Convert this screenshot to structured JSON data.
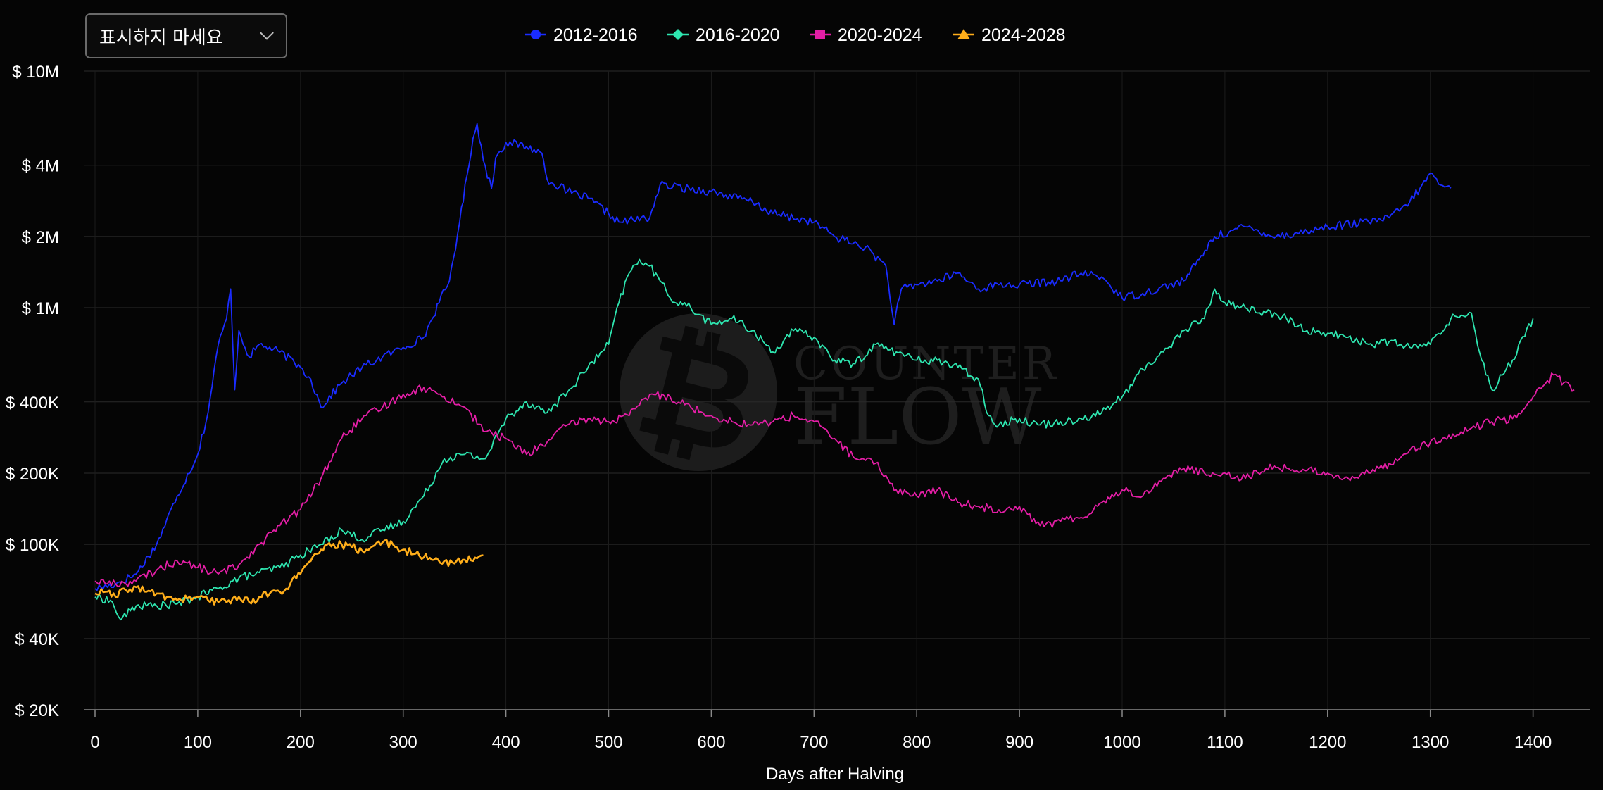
{
  "dropdown": {
    "label": "표시하지 마세요"
  },
  "watermark": {
    "line1": "COUNTER",
    "line2": "FLOW"
  },
  "chart_data": {
    "type": "line",
    "xlabel": "Days after Halving",
    "xlim": [
      0,
      1440
    ],
    "xticks": [
      0,
      100,
      200,
      300,
      400,
      500,
      600,
      700,
      800,
      900,
      1000,
      1100,
      1200,
      1300,
      1400
    ],
    "y_scale": "log",
    "ylim": [
      20000,
      10000000
    ],
    "yticks": [
      {
        "value": 20000,
        "label": "$ 20K"
      },
      {
        "value": 40000,
        "label": "$ 40K"
      },
      {
        "value": 100000,
        "label": "$ 100K"
      },
      {
        "value": 200000,
        "label": "$ 200K"
      },
      {
        "value": 400000,
        "label": "$ 400K"
      },
      {
        "value": 1000000,
        "label": "$ 1M"
      },
      {
        "value": 2000000,
        "label": "$ 2M"
      },
      {
        "value": 4000000,
        "label": "$ 4M"
      },
      {
        "value": 10000000,
        "label": "$ 10M"
      }
    ],
    "grid": true,
    "legend_position": "top",
    "series": [
      {
        "name": "2012-2016",
        "color": "#1a2cff",
        "marker": "circle",
        "x": [
          0,
          20,
          40,
          60,
          80,
          100,
          110,
          120,
          128,
          132,
          136,
          140,
          150,
          160,
          180,
          200,
          210,
          220,
          240,
          260,
          280,
          300,
          320,
          335,
          345,
          355,
          362,
          368,
          372,
          378,
          386,
          390,
          400,
          420,
          435,
          440,
          460,
          480,
          500,
          510,
          540,
          550,
          600,
          640,
          660,
          700,
          720,
          750,
          770,
          778,
          785,
          800,
          820,
          840,
          860,
          880,
          900,
          940,
          960,
          980,
          1000,
          1020,
          1060,
          1075,
          1090,
          1120,
          1150,
          1180,
          1200,
          1240,
          1260,
          1280,
          1290,
          1300,
          1310,
          1320
        ],
        "values": [
          65000,
          68000,
          75000,
          100000,
          160000,
          240000,
          360000,
          700000,
          900000,
          1200000,
          450000,
          800000,
          620000,
          700000,
          650000,
          560000,
          500000,
          380000,
          480000,
          560000,
          620000,
          680000,
          750000,
          1050000,
          1300000,
          2300000,
          3600000,
          5200000,
          6000000,
          4200000,
          3200000,
          4300000,
          5000000,
          4800000,
          4500000,
          3500000,
          3100000,
          2900000,
          2500000,
          2300000,
          2400000,
          3300000,
          3100000,
          2800000,
          2500000,
          2300000,
          2000000,
          1800000,
          1500000,
          850000,
          1200000,
          1250000,
          1300000,
          1400000,
          1200000,
          1250000,
          1250000,
          1300000,
          1400000,
          1350000,
          1100000,
          1150000,
          1300000,
          1600000,
          2000000,
          2200000,
          2000000,
          2100000,
          2200000,
          2300000,
          2400000,
          2800000,
          3200000,
          3700000,
          3300000,
          3200000
        ]
      },
      {
        "name": "2016-2020",
        "color": "#2ee6b0",
        "marker": "diamond",
        "x": [
          0,
          15,
          25,
          40,
          60,
          80,
          100,
          120,
          140,
          160,
          180,
          200,
          220,
          240,
          260,
          280,
          300,
          320,
          340,
          360,
          380,
          400,
          420,
          440,
          460,
          480,
          500,
          510,
          520,
          530,
          540,
          550,
          560,
          580,
          600,
          620,
          640,
          660,
          680,
          700,
          720,
          740,
          760,
          780,
          800,
          820,
          840,
          860,
          870,
          880,
          900,
          920,
          940,
          960,
          980,
          1000,
          1020,
          1040,
          1060,
          1080,
          1090,
          1100,
          1120,
          1140,
          1160,
          1180,
          1200,
          1220,
          1240,
          1260,
          1280,
          1300,
          1320,
          1340,
          1350,
          1360,
          1380,
          1400
        ],
        "values": [
          60000,
          58000,
          48000,
          55000,
          55000,
          56000,
          60000,
          65000,
          72000,
          76000,
          80000,
          90000,
          100000,
          115000,
          105000,
          115000,
          125000,
          160000,
          230000,
          240000,
          230000,
          340000,
          400000,
          360000,
          440000,
          560000,
          700000,
          1050000,
          1400000,
          1600000,
          1500000,
          1300000,
          1100000,
          1000000,
          850000,
          900000,
          800000,
          650000,
          800000,
          750000,
          600000,
          580000,
          700000,
          650000,
          600000,
          600000,
          560000,
          500000,
          350000,
          320000,
          340000,
          320000,
          330000,
          340000,
          360000,
          420000,
          550000,
          650000,
          800000,
          900000,
          1200000,
          1050000,
          1000000,
          950000,
          900000,
          800000,
          780000,
          750000,
          700000,
          720000,
          680000,
          700000,
          900000,
          950000,
          600000,
          450000,
          600000,
          900000
        ]
      },
      {
        "name": "2020-2024",
        "color": "#e41ea6",
        "marker": "square",
        "x": [
          0,
          20,
          40,
          60,
          80,
          100,
          120,
          140,
          160,
          180,
          200,
          220,
          240,
          260,
          280,
          300,
          320,
          340,
          360,
          380,
          400,
          420,
          440,
          460,
          480,
          500,
          520,
          540,
          560,
          580,
          600,
          620,
          640,
          660,
          680,
          700,
          720,
          740,
          760,
          780,
          800,
          820,
          840,
          860,
          880,
          900,
          920,
          940,
          960,
          980,
          1000,
          1020,
          1040,
          1060,
          1080,
          1100,
          1120,
          1140,
          1160,
          1180,
          1200,
          1220,
          1240,
          1260,
          1280,
          1300,
          1320,
          1340,
          1360,
          1380,
          1400,
          1420,
          1440
        ],
        "values": [
          70000,
          68000,
          70000,
          78000,
          85000,
          80000,
          75000,
          82000,
          100000,
          120000,
          140000,
          190000,
          280000,
          340000,
          380000,
          430000,
          460000,
          420000,
          380000,
          300000,
          280000,
          240000,
          270000,
          320000,
          340000,
          330000,
          350000,
          430000,
          420000,
          380000,
          350000,
          330000,
          320000,
          330000,
          350000,
          330000,
          280000,
          230000,
          220000,
          170000,
          160000,
          170000,
          150000,
          145000,
          140000,
          145000,
          120000,
          125000,
          130000,
          150000,
          170000,
          160000,
          190000,
          210000,
          200000,
          200000,
          190000,
          210000,
          210000,
          205000,
          200000,
          190000,
          200000,
          220000,
          250000,
          270000,
          280000,
          310000,
          330000,
          340000,
          420000,
          520000,
          450000
        ]
      },
      {
        "name": "2024-2028",
        "color": "#ffae1a",
        "marker": "triangle",
        "x": [
          0,
          10,
          20,
          30,
          40,
          50,
          60,
          70,
          80,
          90,
          100,
          110,
          120,
          130,
          140,
          150,
          160,
          170,
          180,
          190,
          200,
          210,
          220,
          230,
          240,
          250,
          260,
          270,
          280,
          290,
          300,
          310,
          320,
          330,
          340,
          350,
          360,
          370,
          378
        ],
        "values": [
          62000,
          63000,
          60000,
          64000,
          66000,
          63000,
          62000,
          60000,
          58000,
          59000,
          60000,
          58000,
          57000,
          58000,
          60000,
          57000,
          60000,
          62000,
          63000,
          68000,
          75000,
          85000,
          95000,
          98000,
          100000,
          97000,
          94000,
          98000,
          102000,
          100000,
          95000,
          91000,
          88000,
          86000,
          85000,
          83000,
          86000,
          88000,
          90000
        ]
      }
    ]
  }
}
